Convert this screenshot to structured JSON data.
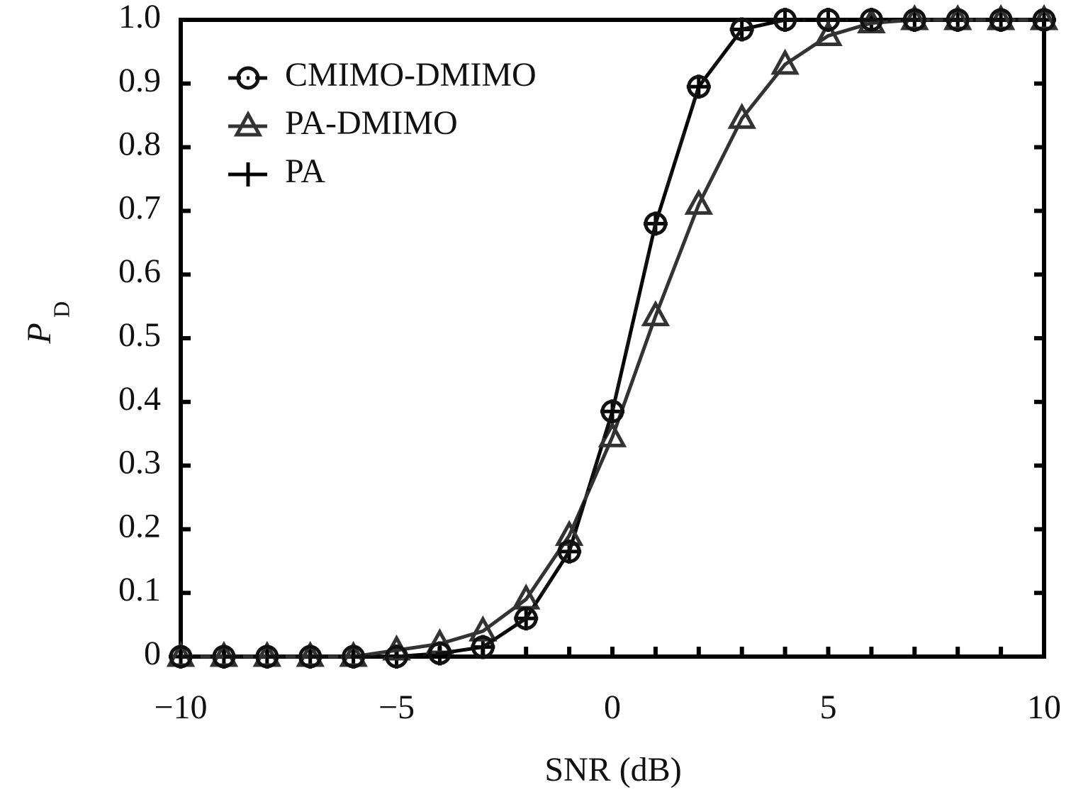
{
  "chart_data": {
    "type": "line",
    "x_label": "SNR (dB)",
    "y_label": "P",
    "y_label_sub": "D",
    "x": [
      -10,
      -9,
      -8,
      -7,
      -6,
      -5,
      -4,
      -3,
      -2,
      -1,
      0,
      1,
      2,
      3,
      4,
      5,
      6,
      7,
      8,
      9,
      10
    ],
    "series": [
      {
        "name": "CMIMO-DMIMO",
        "color": "#111111",
        "marker": "circle",
        "dash": "dashdot",
        "values": [
          0,
          0,
          0,
          0,
          0,
          0,
          0.005,
          0.015,
          0.06,
          0.165,
          0.385,
          0.68,
          0.895,
          0.985,
          1,
          1,
          1,
          1,
          1,
          1,
          1
        ]
      },
      {
        "name": "PA-DMIMO",
        "color": "#333333",
        "marker": "triangle",
        "dash": "solid",
        "values": [
          0,
          0,
          0,
          0,
          0,
          0.01,
          0.02,
          0.04,
          0.09,
          0.19,
          0.345,
          0.535,
          0.71,
          0.845,
          0.93,
          0.975,
          0.995,
          1,
          1,
          1,
          1
        ]
      },
      {
        "name": "PA",
        "color": "#000000",
        "marker": "plus",
        "dash": "solid",
        "values": [
          0,
          0,
          0,
          0,
          0,
          0,
          0.005,
          0.015,
          0.06,
          0.165,
          0.385,
          0.68,
          0.895,
          0.985,
          1,
          1,
          1,
          1,
          1,
          1,
          1
        ]
      }
    ],
    "xlim": [
      -10,
      10
    ],
    "xticks": [
      {
        "value": -10,
        "label": "−10"
      },
      {
        "value": -5,
        "label": "−5"
      },
      0,
      5,
      10
    ],
    "xminorticks": [
      -10,
      -9,
      -8,
      -7,
      -6,
      -5,
      -4,
      -3,
      -2,
      -1,
      0,
      1,
      2,
      3,
      4,
      5,
      6,
      7,
      8,
      9,
      10
    ],
    "ylim": [
      0,
      1
    ],
    "yticks": [
      0,
      0.1,
      0.2,
      0.3,
      0.4,
      0.5,
      0.6,
      0.7,
      0.8,
      0.9,
      {
        "value": 1,
        "label": "1.0"
      }
    ],
    "legend": "upper-left",
    "grid": false
  }
}
